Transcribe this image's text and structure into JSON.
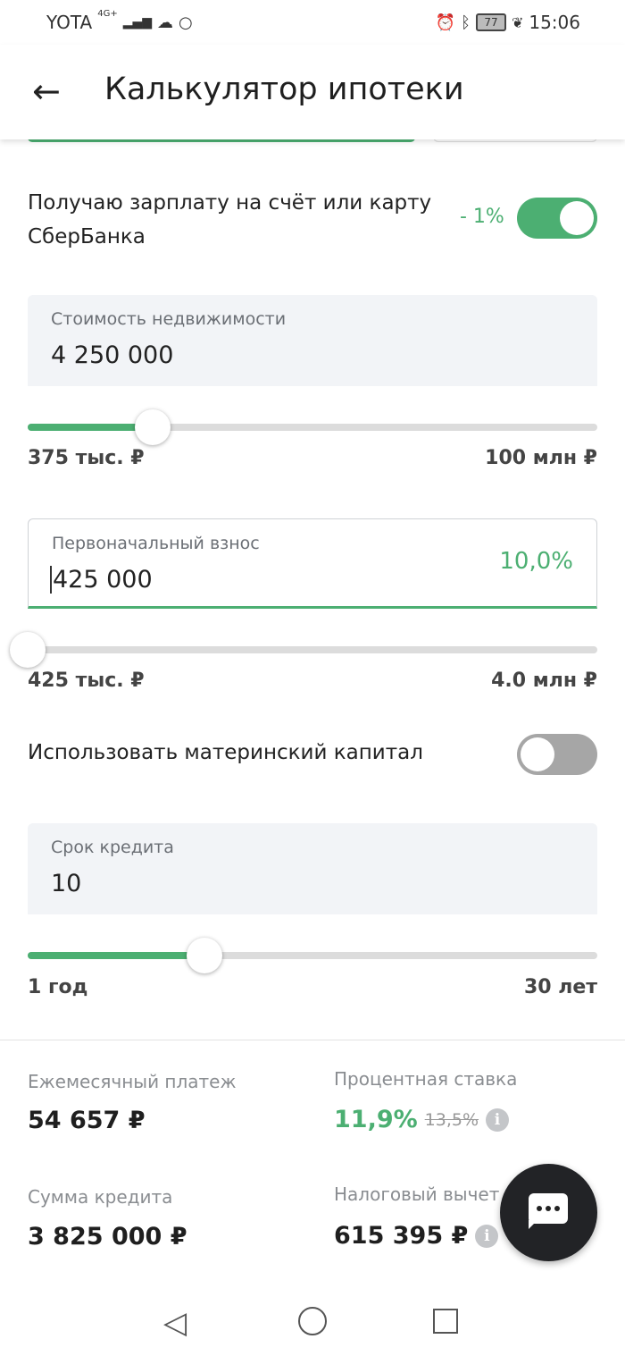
{
  "status_bar": {
    "carrier": "YOTA",
    "network": "4G+",
    "battery": "77",
    "time": "15:06"
  },
  "header": {
    "title": "Калькулятор ипотеки"
  },
  "salary": {
    "label": "Получаю зарплату на счёт или карту СберБанка",
    "discount": "- 1%",
    "enabled": true
  },
  "property": {
    "label": "Стоимость недвижимости",
    "value": "4 250 000",
    "min": "375 тыс. ₽",
    "max": "100 млн ₽",
    "slider_percent": 22
  },
  "down_payment": {
    "label": "Первоначальный взнос",
    "value": "425 000",
    "percent": "10,0%",
    "min": "425 тыс. ₽",
    "max": "4.0 млн ₽",
    "slider_percent": 0
  },
  "maternity": {
    "label": "Использовать материнский капитал",
    "enabled": false
  },
  "term": {
    "label": "Срок кредита",
    "value": "10",
    "min": "1 год",
    "max": "30 лет",
    "slider_percent": 31
  },
  "results": {
    "monthly_label": "Ежемесячный платеж",
    "monthly_value": "54 657 ₽",
    "rate_label": "Процентная ставка",
    "rate_value": "11,9%",
    "rate_old": "13,5%",
    "loan_label": "Сумма кредита",
    "loan_value": "3 825 000 ₽",
    "tax_label": "Налоговый вычет",
    "tax_value": "615 395 ₽"
  },
  "colors": {
    "accent": "#4caf72",
    "fab": "#222326"
  }
}
